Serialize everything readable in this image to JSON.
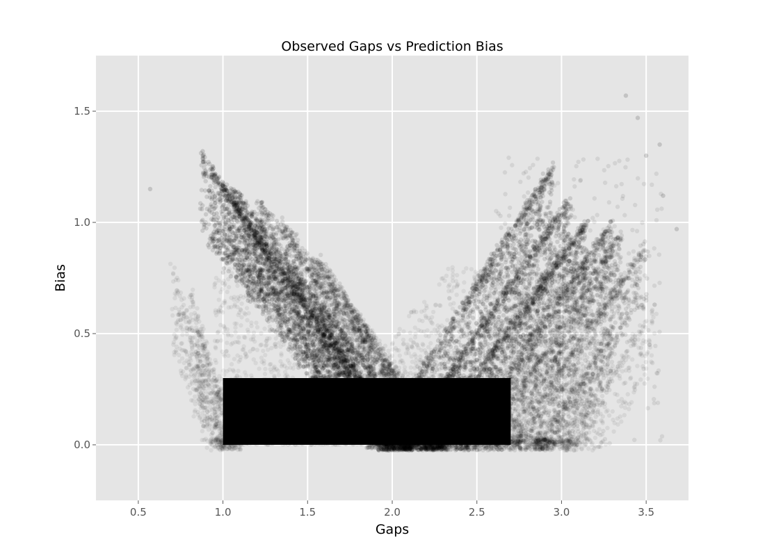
{
  "chart_data": {
    "type": "scatter",
    "title": "Observed Gaps vs Prediction Bias",
    "xlabel": "Gaps",
    "ylabel": "Bias",
    "xlim": [
      0.25,
      3.75
    ],
    "ylim": [
      -0.25,
      1.75
    ],
    "xticks": [
      0.5,
      1.0,
      1.5,
      2.0,
      2.5,
      3.0,
      3.5
    ],
    "xtick_labels": [
      "0.5",
      "1.0",
      "1.5",
      "2.0",
      "2.5",
      "3.0",
      "3.5"
    ],
    "yticks": [
      0.0,
      0.5,
      1.0,
      1.5
    ],
    "ytick_labels": [
      "0.0",
      "0.5",
      "1.0",
      "1.5"
    ],
    "grid": true,
    "background_color": "#e5e5e5",
    "grid_color": "#ffffff",
    "point_color": "#000000",
    "point_alpha": 0.06,
    "point_radius_note": "semi-transparent circles",
    "bands": [
      {
        "dir": -1,
        "x0": 0.87,
        "x1": 2.05,
        "y0": 1.3,
        "weight": 5
      },
      {
        "dir": -1,
        "x0": 0.93,
        "x1": 2.1,
        "y0": 1.23,
        "weight": 6
      },
      {
        "dir": -1,
        "x0": 1.05,
        "x1": 2.2,
        "y0": 1.15,
        "weight": 5
      },
      {
        "dir": -1,
        "x0": 1.2,
        "x1": 2.3,
        "y0": 1.1,
        "weight": 4
      },
      {
        "dir": -1,
        "x0": 1.35,
        "x1": 2.35,
        "y0": 1.0,
        "weight": 3
      },
      {
        "dir": -1,
        "x0": 1.55,
        "x1": 2.3,
        "y0": 0.85,
        "weight": 3
      },
      {
        "dir": -1,
        "x0": 0.7,
        "x1": 1.0,
        "y0": 0.8,
        "weight": 1
      },
      {
        "dir": -1,
        "x0": 0.8,
        "x1": 1.05,
        "y0": 0.7,
        "weight": 1
      },
      {
        "dir": -1,
        "x0": 0.85,
        "x1": 1.1,
        "y0": 0.5,
        "weight": 1
      },
      {
        "dir": 1,
        "x0": 1.9,
        "x1": 2.95,
        "y0": 0.0,
        "y1": 1.25,
        "weight": 5
      },
      {
        "dir": 1,
        "x0": 2.05,
        "x1": 3.05,
        "y0": 0.0,
        "y1": 1.1,
        "weight": 5
      },
      {
        "dir": 1,
        "x0": 2.2,
        "x1": 3.15,
        "y0": 0.0,
        "y1": 1.0,
        "weight": 5
      },
      {
        "dir": 1,
        "x0": 2.4,
        "x1": 3.3,
        "y0": 0.0,
        "y1": 1.0,
        "weight": 4
      },
      {
        "dir": 1,
        "x0": 2.55,
        "x1": 3.35,
        "y0": 0.0,
        "y1": 0.95,
        "weight": 3
      },
      {
        "dir": 1,
        "x0": 2.7,
        "x1": 3.5,
        "y0": 0.0,
        "y1": 0.9,
        "weight": 3
      },
      {
        "dir": 1,
        "x0": 2.85,
        "x1": 3.3,
        "y0": 0.0,
        "y1": 0.5,
        "weight": 2
      },
      {
        "dir": 1,
        "x0": 3.0,
        "x1": 3.55,
        "y0": 0.0,
        "y1": 0.6,
        "weight": 1
      }
    ],
    "dense_region": {
      "x_range": [
        1.0,
        2.7
      ],
      "y_range": [
        0.0,
        0.5
      ]
    }
  }
}
